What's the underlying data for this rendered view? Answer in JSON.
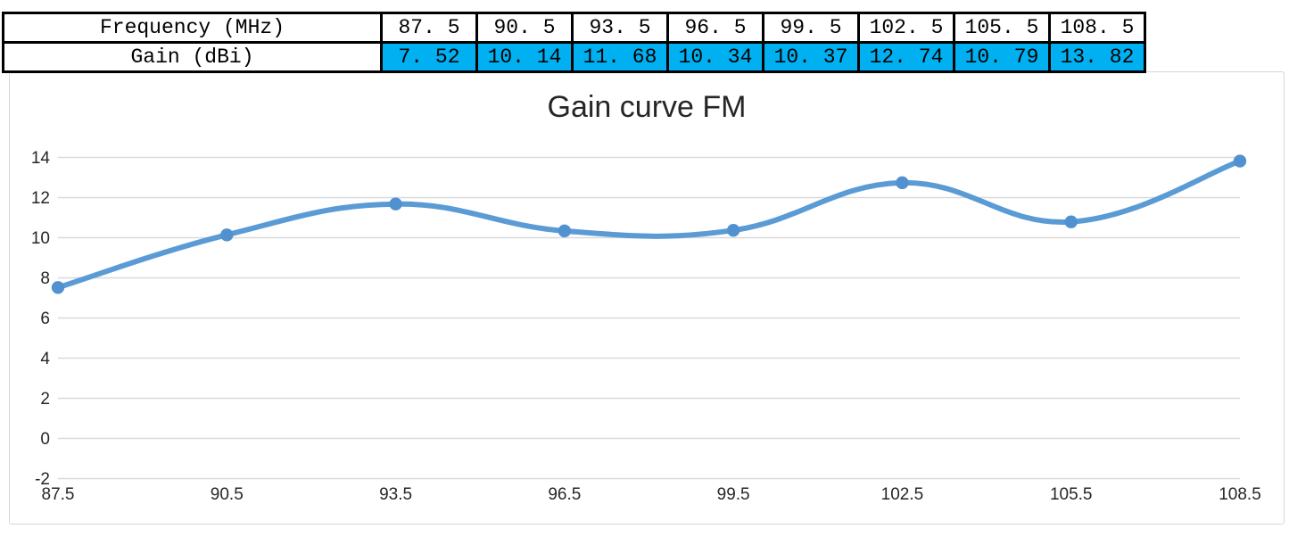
{
  "table": {
    "frequency_label": "Frequency (MHz)",
    "gain_label": "Gain (dBi)",
    "frequency_values": [
      "87.5",
      "90.5",
      "93.5",
      "96.5",
      "99.5",
      "102.5",
      "105.5",
      "108.5"
    ],
    "gain_values": [
      "7.52",
      "10.14",
      "11.68",
      "10.34",
      "10.37",
      "12.74",
      "10.79",
      "13.82"
    ],
    "gain_row_bg": "#00B0F0",
    "border_color": "#000000"
  },
  "chart_data": {
    "type": "line",
    "title": "Gain curve FM",
    "x": [
      87.5,
      90.5,
      93.5,
      96.5,
      99.5,
      102.5,
      105.5,
      108.5
    ],
    "y": [
      7.52,
      10.14,
      11.68,
      10.34,
      10.37,
      12.74,
      10.79,
      13.82
    ],
    "x_tick_labels": [
      "87.5",
      "90.5",
      "93.5",
      "96.5",
      "99.5",
      "102.5",
      "105.5",
      "108.5"
    ],
    "y_ticks": [
      -2,
      0,
      2,
      4,
      6,
      8,
      10,
      12,
      14
    ],
    "ylim": [
      -2,
      14
    ],
    "xlabel": "",
    "ylabel": "",
    "grid": "horizontal",
    "legend": "none",
    "smooth": true,
    "line_color": "#5B9BD5",
    "marker_color": "#5291CF",
    "gridline_color": "#D9D9D9",
    "axis_text_color": "#262626",
    "frame_border_color": "#D6D6D6"
  }
}
